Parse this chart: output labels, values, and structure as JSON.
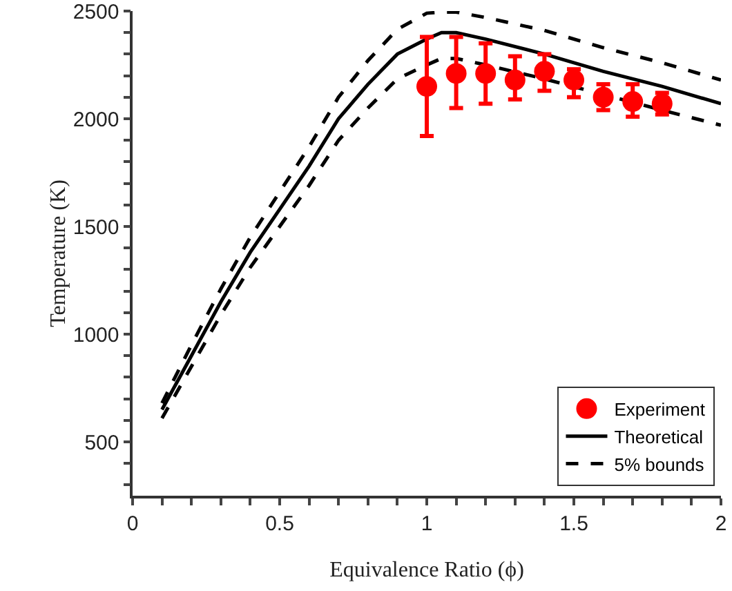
{
  "chart_data": {
    "type": "line",
    "xlabel": "Equivalence Ratio (ϕ)",
    "ylabel": "Temperature (K)",
    "xlim": [
      0,
      2
    ],
    "ylim": [
      250,
      2500
    ],
    "xticks": [
      0,
      {
        "value": 0.1,
        "label": null
      },
      {
        "value": 0.2,
        "label": null
      },
      {
        "value": 0.3,
        "label": null
      },
      {
        "value": 0.4,
        "label": null
      },
      0.5,
      {
        "value": 0.6,
        "label": null
      },
      {
        "value": 0.7,
        "label": null
      },
      {
        "value": 0.8,
        "label": null
      },
      {
        "value": 0.9,
        "label": null
      },
      1,
      {
        "value": 1.1,
        "label": null
      },
      {
        "value": 1.2,
        "label": null
      },
      {
        "value": 1.3,
        "label": null
      },
      {
        "value": 1.4,
        "label": null
      },
      1.5,
      {
        "value": 1.6,
        "label": null
      },
      {
        "value": 1.7,
        "label": null
      },
      {
        "value": 1.8,
        "label": null
      },
      {
        "value": 1.9,
        "label": null
      },
      2
    ],
    "yticks": [
      {
        "value": 300,
        "label": null
      },
      {
        "value": 400,
        "label": null
      },
      500,
      {
        "value": 600,
        "label": null
      },
      {
        "value": 700,
        "label": null
      },
      {
        "value": 800,
        "label": null
      },
      {
        "value": 900,
        "label": null
      },
      1000,
      {
        "value": 1100,
        "label": null
      },
      {
        "value": 1200,
        "label": null
      },
      {
        "value": 1300,
        "label": null
      },
      {
        "value": 1400,
        "label": null
      },
      1500,
      {
        "value": 1600,
        "label": null
      },
      {
        "value": 1700,
        "label": null
      },
      {
        "value": 1800,
        "label": null
      },
      {
        "value": 1900,
        "label": null
      },
      2000,
      {
        "value": 2100,
        "label": null
      },
      {
        "value": 2200,
        "label": null
      },
      {
        "value": 2300,
        "label": null
      },
      {
        "value": 2400,
        "label": null
      },
      2500
    ],
    "grid": false,
    "legend": "bottom right",
    "series": [
      {
        "name": "Experiment",
        "type": "scatter",
        "color": "#ff0000",
        "marker": "circle",
        "x": [
          1.0,
          1.1,
          1.2,
          1.3,
          1.4,
          1.5,
          1.6,
          1.7,
          1.8
        ],
        "values": [
          2150,
          2210,
          2210,
          2180,
          2220,
          2180,
          2100,
          2080,
          2070
        ],
        "errors": [
          [
            1920,
            2380
          ],
          [
            2050,
            2380
          ],
          [
            2070,
            2350
          ],
          [
            2090,
            2290
          ],
          [
            2130,
            2300
          ],
          [
            2100,
            2230
          ],
          [
            2040,
            2160
          ],
          [
            2010,
            2160
          ],
          [
            2020,
            2120
          ]
        ]
      },
      {
        "name": "Theoretical",
        "color": "#000000",
        "line_style": "solid",
        "x": [
          0.1,
          0.2,
          0.3,
          0.4,
          0.5,
          0.6,
          0.7,
          0.8,
          0.9,
          1.0,
          1.05,
          1.1,
          1.2,
          1.4,
          1.6,
          1.8,
          2.0
        ],
        "values": [
          650,
          900,
          1150,
          1380,
          1580,
          1780,
          2000,
          2160,
          2300,
          2370,
          2400,
          2400,
          2370,
          2300,
          2220,
          2150,
          2070
        ]
      },
      {
        "name": "5% bounds",
        "color": "#000000",
        "line_style": "dashed",
        "x": [
          0.1,
          0.2,
          0.3,
          0.4,
          0.5,
          0.6,
          0.7,
          0.8,
          0.9,
          1.0,
          1.05,
          1.1,
          1.2,
          1.4,
          1.6,
          1.8,
          2.0
        ],
        "values": [
          680,
          950,
          1210,
          1450,
          1660,
          1870,
          2100,
          2270,
          2415,
          2490,
          2495,
          2495,
          2470,
          2410,
          2330,
          2260,
          2180
        ]
      },
      {
        "color": "#000000",
        "line_style": "dashed",
        "x": [
          0.1,
          0.2,
          0.3,
          0.4,
          0.5,
          0.6,
          0.7,
          0.8,
          0.9,
          1.0,
          1.05,
          1.1,
          1.2,
          1.4,
          1.8,
          2.0
        ],
        "values": [
          610,
          850,
          1090,
          1310,
          1500,
          1690,
          1900,
          2050,
          2185,
          2250,
          2280,
          2280,
          2250,
          2185,
          2040,
          1970
        ]
      }
    ]
  }
}
